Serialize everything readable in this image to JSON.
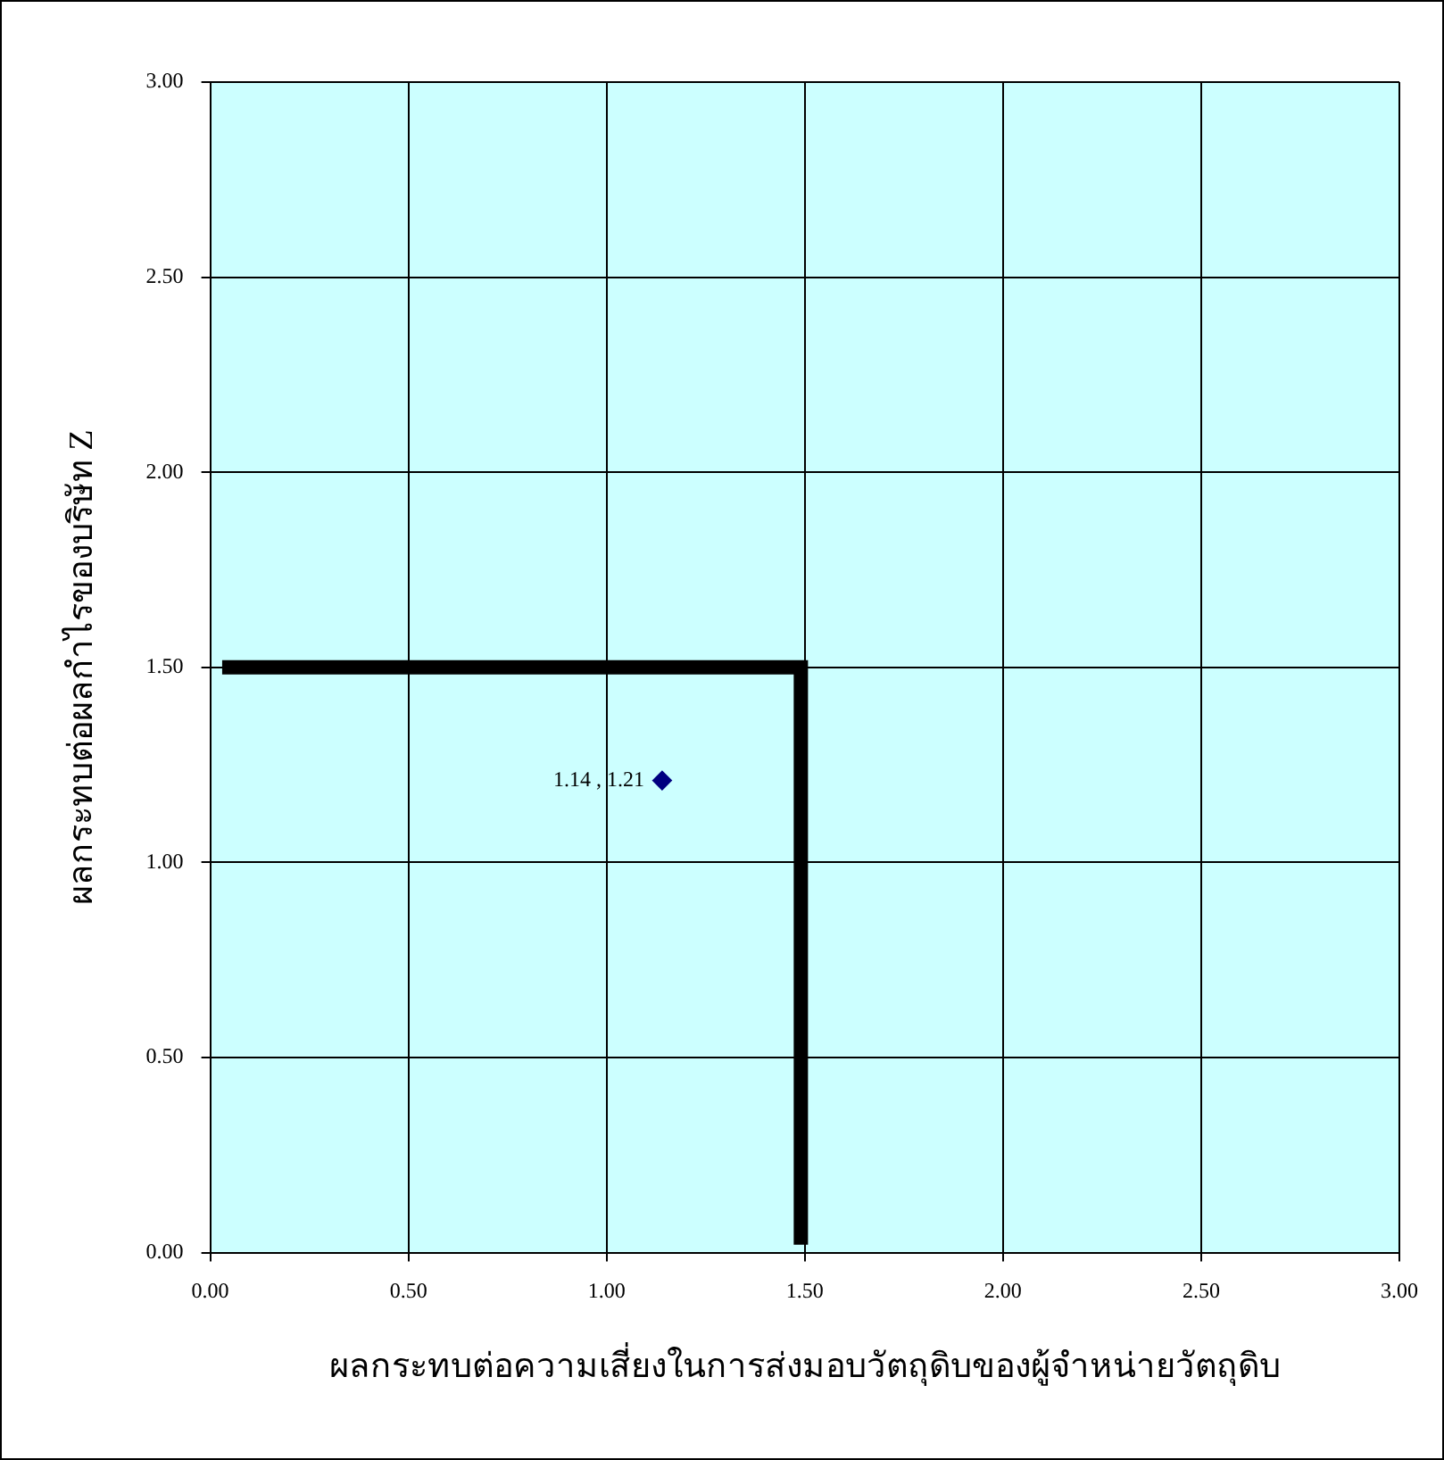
{
  "chart_data": {
    "type": "scatter",
    "xlabel": "ผลกระทบต่อความเสี่ยงในการส่งมอบวัตถุดิบของผู้จำหน่ายวัตถุดิบ",
    "ylabel": "ผลกระทบต่อผลกำไรของบริษัท Z",
    "xlim": [
      0,
      3
    ],
    "ylim": [
      0,
      3
    ],
    "xticks": [
      {
        "value": 0,
        "label": "0.00"
      },
      {
        "value": 0.5,
        "label": "0.50"
      },
      {
        "value": 1,
        "label": "1.00"
      },
      {
        "value": 1.5,
        "label": "1.50"
      },
      {
        "value": 2,
        "label": "2.00"
      },
      {
        "value": 2.5,
        "label": "2.50"
      },
      {
        "value": 3,
        "label": "3.00"
      }
    ],
    "yticks": [
      {
        "value": 0,
        "label": "0.00"
      },
      {
        "value": 0.5,
        "label": "0.50"
      },
      {
        "value": 1,
        "label": "1.00"
      },
      {
        "value": 1.5,
        "label": "1.50"
      },
      {
        "value": 2,
        "label": "2.00"
      },
      {
        "value": 2.5,
        "label": "2.50"
      },
      {
        "value": 3,
        "label": "3.00"
      }
    ],
    "grid": true,
    "legend": false,
    "series": [
      {
        "type": "line",
        "color": "#000000",
        "marker": "none",
        "x": [
          0.03,
          1.49,
          1.49
        ],
        "values": [
          1.5,
          1.5,
          0.02
        ]
      },
      {
        "type": "scatter",
        "color": "#000080",
        "marker": "diamond",
        "x": [
          1.14
        ],
        "values": [
          1.21
        ],
        "value_labels": [
          "1.14 , 1.21"
        ]
      }
    ]
  }
}
